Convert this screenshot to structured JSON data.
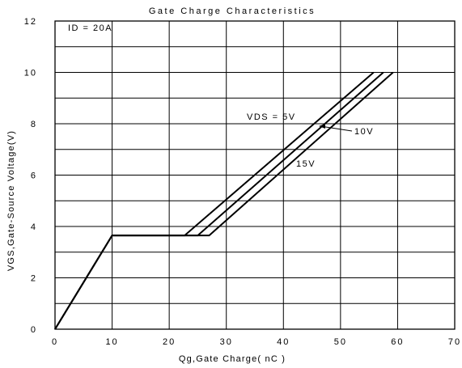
{
  "chart_data": {
    "type": "line",
    "title": "Gate Charge Characteristics",
    "xlabel": "Qg,Gate Charge( nC )",
    "ylabel": "VGS,Gate-Source Voltage(V)",
    "xlim": [
      0,
      70
    ],
    "ylim": [
      0,
      12
    ],
    "x_ticks": [
      0,
      10,
      20,
      30,
      40,
      50,
      60,
      70
    ],
    "y_ticks": [
      0,
      2,
      4,
      6,
      8,
      10,
      12
    ],
    "grid": true,
    "annotations": {
      "condition": "ID = 20A",
      "vds5": "VDS = 5V",
      "vds10": "10V",
      "vds15": "15V"
    },
    "series": [
      {
        "name": "5V",
        "points": [
          [
            0,
            0
          ],
          [
            10,
            3.65
          ],
          [
            22.7,
            3.65
          ],
          [
            55.8,
            10
          ]
        ]
      },
      {
        "name": "10V",
        "points": [
          [
            0,
            0
          ],
          [
            10,
            3.65
          ],
          [
            25,
            3.65
          ],
          [
            57.5,
            10
          ]
        ]
      },
      {
        "name": "15V",
        "points": [
          [
            0,
            0
          ],
          [
            10,
            3.65
          ],
          [
            27,
            3.65
          ],
          [
            59.2,
            10
          ]
        ]
      }
    ]
  }
}
